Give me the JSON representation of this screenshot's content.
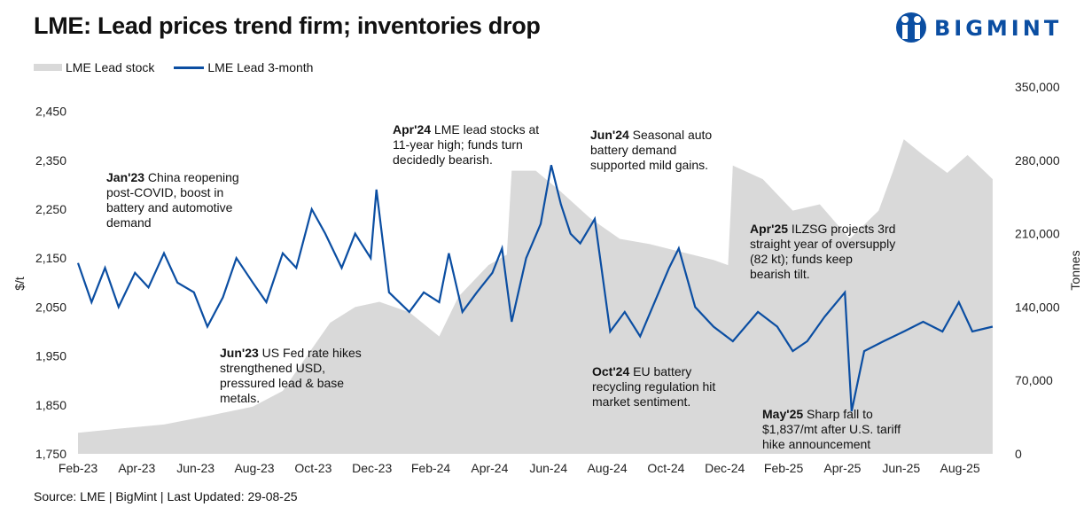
{
  "title": "LME: Lead prices trend firm; inventories drop",
  "logo": {
    "text": "BIGMINT",
    "color": "#0b4ea2"
  },
  "source": "Source: LME | BigMint | Last Updated: 29-08-25",
  "chart_data": {
    "type": "line+area",
    "ylabel": "$/t",
    "y2label": "Tonnes",
    "ylim": [
      1750,
      2500
    ],
    "y2lim": [
      0,
      350000
    ],
    "yticks": [
      "1,750",
      "1,850",
      "1,950",
      "2,050",
      "2,150",
      "2,250",
      "2,350",
      "2,450"
    ],
    "y2ticks": [
      "0",
      "70,000",
      "140,000",
      "210,000",
      "280,000",
      "350,000"
    ],
    "xticks": [
      "Feb-23",
      "Apr-23",
      "Jun-23",
      "Aug-23",
      "Oct-23",
      "Dec-23",
      "Feb-24",
      "Apr-24",
      "Jun-24",
      "Aug-24",
      "Oct-24",
      "Dec-24",
      "Feb-25",
      "Apr-25",
      "Jun-25",
      "Aug-25"
    ],
    "grid": false,
    "legend": "top-left",
    "series": [
      {
        "name": "LME Lead stock",
        "type": "area",
        "color": "#d9d9d9",
        "axis": "right",
        "points": [
          [
            "2023-02-01",
            20000
          ],
          [
            "2023-03-15",
            24000
          ],
          [
            "2023-05-01",
            28000
          ],
          [
            "2023-06-15",
            36000
          ],
          [
            "2023-08-01",
            45000
          ],
          [
            "2023-09-01",
            60000
          ],
          [
            "2023-10-01",
            100000
          ],
          [
            "2023-10-20",
            125000
          ],
          [
            "2023-11-15",
            140000
          ],
          [
            "2023-12-10",
            145000
          ],
          [
            "2024-01-10",
            135000
          ],
          [
            "2024-02-10",
            112000
          ],
          [
            "2024-03-01",
            150000
          ],
          [
            "2024-04-01",
            180000
          ],
          [
            "2024-04-20",
            190000
          ],
          [
            "2024-04-25",
            270000
          ],
          [
            "2024-05-20",
            270000
          ],
          [
            "2024-06-15",
            250000
          ],
          [
            "2024-07-15",
            225000
          ],
          [
            "2024-08-15",
            205000
          ],
          [
            "2024-09-15",
            200000
          ],
          [
            "2024-10-20",
            192000
          ],
          [
            "2024-11-20",
            185000
          ],
          [
            "2024-12-05",
            180000
          ],
          [
            "2024-12-10",
            275000
          ],
          [
            "2025-01-10",
            262000
          ],
          [
            "2025-02-10",
            232000
          ],
          [
            "2025-03-10",
            238000
          ],
          [
            "2025-04-10",
            205000
          ],
          [
            "2025-05-10",
            232000
          ],
          [
            "2025-05-25",
            270000
          ],
          [
            "2025-06-05",
            300000
          ],
          [
            "2025-06-25",
            285000
          ],
          [
            "2025-07-20",
            268000
          ],
          [
            "2025-08-10",
            285000
          ],
          [
            "2025-09-05",
            262000
          ]
        ]
      },
      {
        "name": "LME Lead 3-month",
        "type": "line",
        "color": "#0b4ea2",
        "axis": "left",
        "points": [
          [
            "2023-02-01",
            2140
          ],
          [
            "2023-02-15",
            2060
          ],
          [
            "2023-03-01",
            2130
          ],
          [
            "2023-03-15",
            2050
          ],
          [
            "2023-04-01",
            2120
          ],
          [
            "2023-04-15",
            2090
          ],
          [
            "2023-05-01",
            2160
          ],
          [
            "2023-05-15",
            2100
          ],
          [
            "2023-06-01",
            2080
          ],
          [
            "2023-06-15",
            2010
          ],
          [
            "2023-07-01",
            2070
          ],
          [
            "2023-07-15",
            2150
          ],
          [
            "2023-08-01",
            2100
          ],
          [
            "2023-08-15",
            2060
          ],
          [
            "2023-09-01",
            2160
          ],
          [
            "2023-09-15",
            2130
          ],
          [
            "2023-10-01",
            2250
          ],
          [
            "2023-10-15",
            2200
          ],
          [
            "2023-11-01",
            2130
          ],
          [
            "2023-11-15",
            2200
          ],
          [
            "2023-12-01",
            2150
          ],
          [
            "2023-12-07",
            2290
          ],
          [
            "2023-12-20",
            2080
          ],
          [
            "2024-01-10",
            2040
          ],
          [
            "2024-01-25",
            2080
          ],
          [
            "2024-02-10",
            2060
          ],
          [
            "2024-02-20",
            2160
          ],
          [
            "2024-03-05",
            2040
          ],
          [
            "2024-03-20",
            2080
          ],
          [
            "2024-04-05",
            2120
          ],
          [
            "2024-04-15",
            2170
          ],
          [
            "2024-04-25",
            2020
          ],
          [
            "2024-05-10",
            2150
          ],
          [
            "2024-05-25",
            2220
          ],
          [
            "2024-06-05",
            2340
          ],
          [
            "2024-06-15",
            2260
          ],
          [
            "2024-06-25",
            2200
          ],
          [
            "2024-07-05",
            2180
          ],
          [
            "2024-07-20",
            2230
          ],
          [
            "2024-08-05",
            2000
          ],
          [
            "2024-08-20",
            2040
          ],
          [
            "2024-09-05",
            1990
          ],
          [
            "2024-09-20",
            2060
          ],
          [
            "2024-10-05",
            2130
          ],
          [
            "2024-10-15",
            2170
          ],
          [
            "2024-11-01",
            2050
          ],
          [
            "2024-11-20",
            2010
          ],
          [
            "2024-12-10",
            1980
          ],
          [
            "2025-01-05",
            2040
          ],
          [
            "2025-01-25",
            2010
          ],
          [
            "2025-02-10",
            1960
          ],
          [
            "2025-02-25",
            1980
          ],
          [
            "2025-03-15",
            2030
          ],
          [
            "2025-04-05",
            2080
          ],
          [
            "2025-04-12",
            1837
          ],
          [
            "2025-04-25",
            1960
          ],
          [
            "2025-05-15",
            1980
          ],
          [
            "2025-06-05",
            2000
          ],
          [
            "2025-06-25",
            2020
          ],
          [
            "2025-07-15",
            2000
          ],
          [
            "2025-08-01",
            2060
          ],
          [
            "2025-08-15",
            2000
          ],
          [
            "2025-09-05",
            2010
          ]
        ]
      }
    ],
    "annotations": [
      {
        "bold": "Jan'23",
        "text": " China reopening post-COVID, boost in battery and automotive demand"
      },
      {
        "bold": "Jun'23",
        "text": " US Fed rate hikes strengthened USD, pressured lead & base metals."
      },
      {
        "bold": "Apr'24",
        "text": " LME lead stocks at 11-year high; funds turn decidedly bearish."
      },
      {
        "bold": "Jun'24",
        "text": " Seasonal auto battery demand supported mild gains."
      },
      {
        "bold": "Oct'24",
        "text": " EU battery recycling regulation hit market sentiment."
      },
      {
        "bold": "Apr'25",
        "text": " ILZSG projects 3rd straight year of oversupply (82 kt); funds keep bearish tilt."
      },
      {
        "bold": "May'25",
        "text": " Sharp fall to $1,837/mt after U.S. tariff hike announcement"
      }
    ]
  }
}
